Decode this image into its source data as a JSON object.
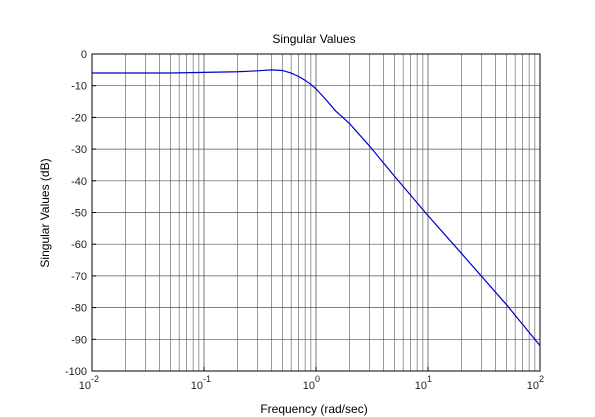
{
  "chart_data": {
    "type": "line",
    "title": "Singular Values",
    "xlabel": "Frequency (rad/sec)",
    "ylabel": "Singular Values (dB)",
    "x_scale": "log",
    "xlim": [
      0.01,
      100
    ],
    "ylim": [
      -100,
      0
    ],
    "x_ticks": [
      {
        "value": 0.01,
        "base": "10",
        "exp": "-2"
      },
      {
        "value": 0.1,
        "base": "10",
        "exp": "-1"
      },
      {
        "value": 1,
        "base": "10",
        "exp": "0"
      },
      {
        "value": 10,
        "base": "10",
        "exp": "1"
      },
      {
        "value": 100,
        "base": "10",
        "exp": "2"
      }
    ],
    "y_ticks": [
      0,
      -10,
      -20,
      -30,
      -40,
      -50,
      -60,
      -70,
      -80,
      -90,
      -100
    ],
    "y_tick_labels": [
      "0",
      "-10",
      "-20",
      "-30",
      "-40",
      "-50",
      "-60",
      "-70",
      "-80",
      "-90",
      "-100"
    ],
    "grid": true,
    "line_color": "#0000cc",
    "grid_color": "#555555",
    "series": [
      {
        "x": [
          0.01,
          0.02,
          0.05,
          0.1,
          0.2,
          0.3,
          0.4,
          0.5,
          0.6,
          0.7,
          0.8,
          0.9,
          1.0,
          1.2,
          1.5,
          2,
          3,
          5,
          10,
          20,
          50,
          100
        ],
        "y": [
          -6.0,
          -6.0,
          -6.0,
          -5.8,
          -5.6,
          -5.3,
          -5.0,
          -5.2,
          -6.0,
          -7.1,
          -8.3,
          -9.6,
          -11.0,
          -14.0,
          -18.0,
          -22.0,
          -29.0,
          -38.5,
          -51.0,
          -63.0,
          -79.0,
          -92.0
        ]
      }
    ]
  }
}
